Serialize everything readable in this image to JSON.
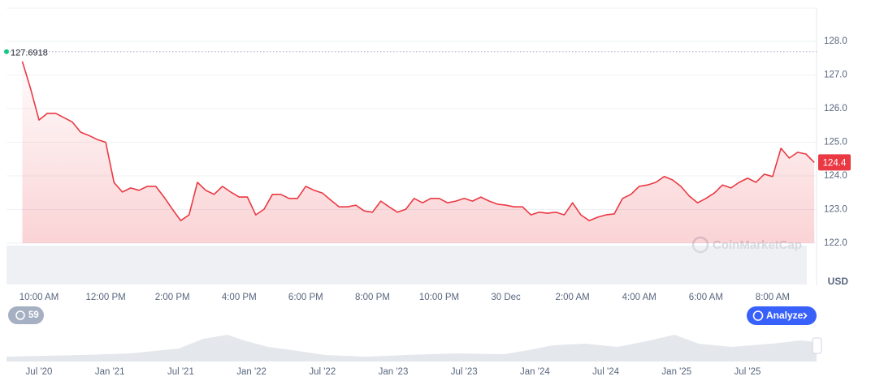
{
  "chart_data": {
    "type": "line",
    "currency": "USD",
    "watermark": "CoinMarketCap",
    "analyze_button": "Analyze",
    "history_badge": 59,
    "reference_price": 127.6918,
    "current_price": 124.4,
    "color": "#ea3943",
    "grid": true,
    "ylim": [
      122,
      129
    ],
    "yticks": [
      {
        "value": 122,
        "label": "122.0"
      },
      {
        "value": 123,
        "label": "123.0"
      },
      {
        "value": 124,
        "label": "124.0"
      },
      {
        "value": 125,
        "label": "125.0"
      },
      {
        "value": 126,
        "label": "126.0"
      },
      {
        "value": 127,
        "label": "127.0"
      },
      {
        "value": 128,
        "label": "128.0"
      }
    ],
    "categories": [
      null,
      null,
      "10:00 AM",
      null,
      null,
      null,
      null,
      null,
      null,
      null,
      "12:00 PM",
      null,
      null,
      null,
      null,
      null,
      null,
      null,
      "2:00 PM",
      null,
      null,
      null,
      null,
      null,
      null,
      null,
      "4:00 PM",
      null,
      null,
      null,
      null,
      null,
      null,
      null,
      "6:00 PM",
      null,
      null,
      null,
      null,
      null,
      null,
      null,
      "8:00 PM",
      null,
      null,
      null,
      null,
      null,
      null,
      null,
      "10:00 PM",
      null,
      null,
      null,
      null,
      null,
      null,
      null,
      "30 Dec",
      null,
      null,
      null,
      null,
      null,
      null,
      null,
      "2:00 AM",
      null,
      null,
      null,
      null,
      null,
      null,
      null,
      "4:00 AM",
      null,
      null,
      null,
      null,
      null,
      null,
      null,
      "6:00 AM",
      null,
      null,
      null,
      null,
      null,
      null,
      null,
      "8:00 AM",
      null,
      null,
      null,
      null,
      null
    ],
    "values": [
      127.4,
      126.58,
      125.66,
      125.86,
      125.86,
      125.73,
      125.6,
      125.3,
      125.2,
      125.08,
      125.0,
      123.8,
      123.52,
      123.64,
      123.57,
      123.69,
      123.69,
      123.37,
      123.01,
      122.67,
      122.84,
      123.81,
      123.57,
      123.45,
      123.69,
      123.52,
      123.37,
      123.37,
      122.84,
      123.01,
      123.45,
      123.45,
      123.33,
      123.33,
      123.69,
      123.57,
      123.49,
      123.28,
      123.08,
      123.08,
      123.13,
      122.96,
      122.92,
      123.25,
      123.08,
      122.92,
      123.01,
      123.33,
      123.2,
      123.33,
      123.33,
      123.2,
      123.25,
      123.33,
      123.25,
      123.37,
      123.25,
      123.16,
      123.13,
      123.08,
      123.08,
      122.84,
      122.92,
      122.89,
      122.92,
      122.84,
      123.2,
      122.84,
      122.67,
      122.77,
      122.84,
      122.87,
      123.33,
      123.45,
      123.69,
      123.73,
      123.81,
      123.98,
      123.88,
      123.69,
      123.4,
      123.2,
      123.33,
      123.49,
      123.73,
      123.64,
      123.81,
      123.93,
      123.81,
      124.05,
      123.98,
      124.82,
      124.53,
      124.7,
      124.65,
      124.4
    ],
    "navigator_labels": [
      "Jul '20",
      "Jan '21",
      "Jul '21",
      "Jan '22",
      "Jul '22",
      "Jan '23",
      "Jul '23",
      "Jan '24",
      "Jul '24",
      "Jan '25",
      "Jul '25"
    ]
  }
}
